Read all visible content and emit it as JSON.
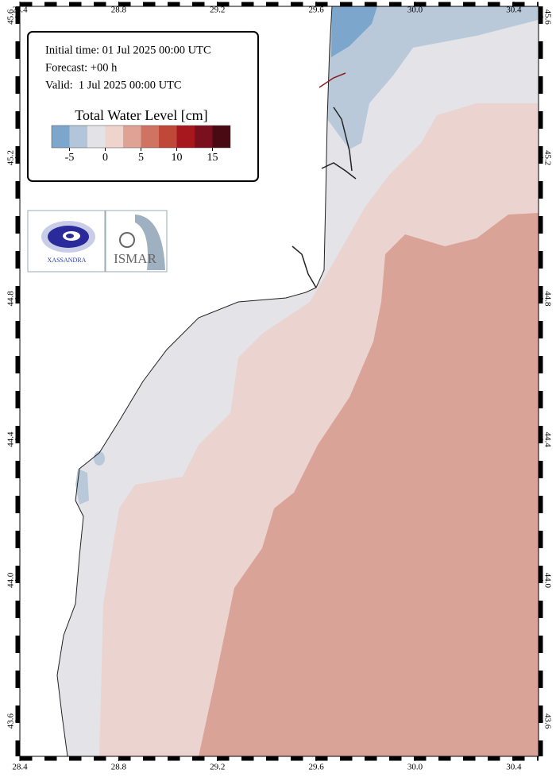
{
  "chart_data": {
    "type": "map",
    "info": [
      "Initial time: 01 Jul 2025 00:00 UTC",
      "Forecast: +00 h",
      "Valid:  1 Jul 2025 00:00 UTC"
    ],
    "xlim": [
      28.4,
      30.5
    ],
    "xticks": [
      28.4,
      28.8,
      29.2,
      29.6,
      {
        "value": 30,
        "label": "30.0"
      },
      30.4
    ],
    "ylim": [
      43.5,
      45.63
    ],
    "yticks": [
      43.6,
      {
        "value": 44,
        "label": "44.0"
      },
      44.4,
      44.8,
      45.2,
      45.6
    ],
    "colorbar": {
      "title": "Total Water Level [cm]",
      "lim": [
        -7.5,
        17.5
      ],
      "ticks": [
        -5,
        0,
        5,
        10,
        15
      ],
      "colors": [
        "#7da6cc",
        "#b3c6d9",
        "#e3e3e7",
        "#efd3cd",
        "#dea395",
        "#cf7462",
        "#bf4839",
        "#a6171e",
        "#7a0f1e",
        "#4a0a14"
      ]
    },
    "logos": [
      "XASSANDRA",
      "ISMAR"
    ]
  }
}
